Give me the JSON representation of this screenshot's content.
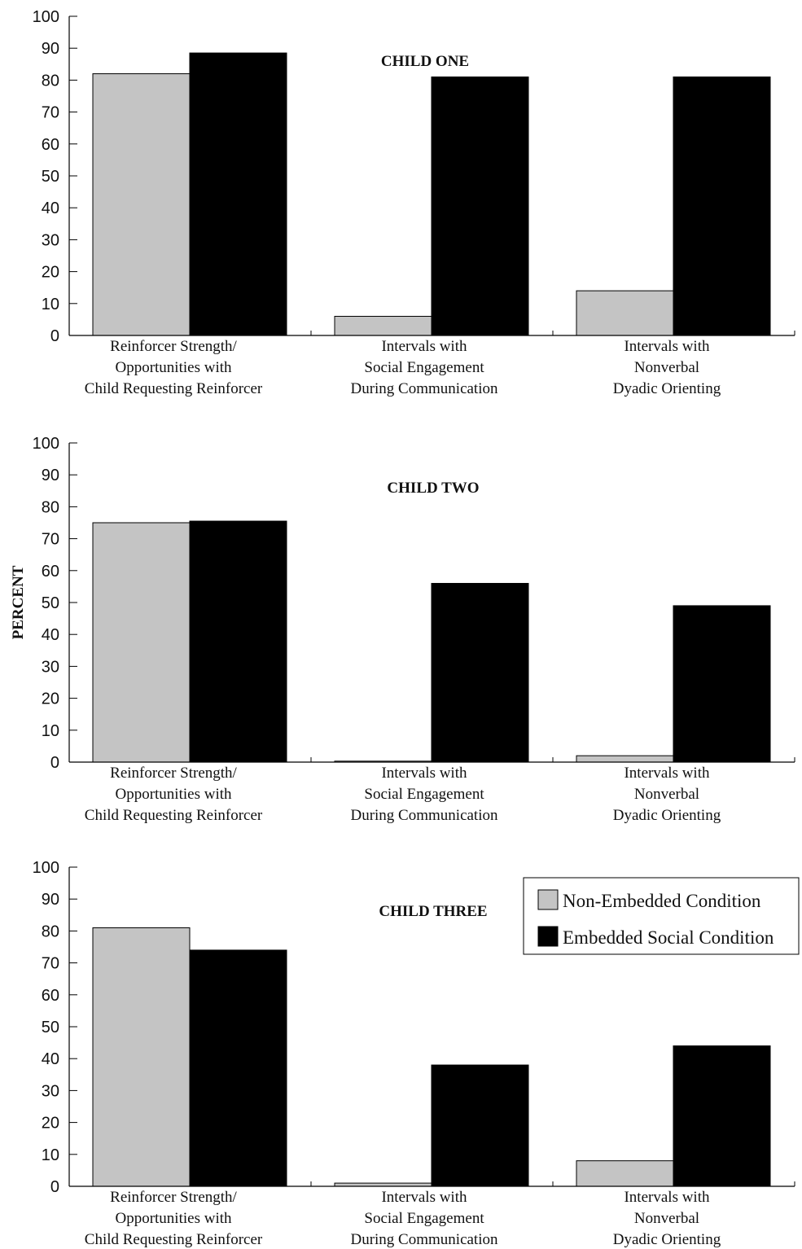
{
  "chart_data": [
    {
      "type": "bar",
      "title": "CHILD ONE",
      "ylabel": "",
      "ylim": [
        0,
        100
      ],
      "yticks": [
        0,
        10,
        20,
        30,
        40,
        50,
        60,
        70,
        80,
        90,
        100
      ],
      "categories": [
        [
          "Reinforcer Strength/",
          "Opportunities with",
          "Child Requesting Reinforcer"
        ],
        [
          "Intervals with",
          "Social Engagement",
          "During Communication"
        ],
        [
          "Intervals with",
          "Nonverbal",
          "Dyadic Orienting"
        ]
      ],
      "series": [
        {
          "name": "Non-Embedded Condition",
          "color": "#c4c4c4",
          "values": [
            82,
            6,
            14
          ]
        },
        {
          "name": "Embedded Social Condition",
          "color": "#000000",
          "values": [
            88.5,
            81,
            81
          ]
        }
      ]
    },
    {
      "type": "bar",
      "title": "CHILD TWO",
      "ylabel": "PERCENT",
      "ylim": [
        0,
        100
      ],
      "yticks": [
        0,
        10,
        20,
        30,
        40,
        50,
        60,
        70,
        80,
        90,
        100
      ],
      "categories": [
        [
          "Reinforcer Strength/",
          "Opportunities with",
          "Child Requesting Reinforcer"
        ],
        [
          "Intervals with",
          "Social Engagement",
          "During Communication"
        ],
        [
          "Intervals with",
          "Nonverbal",
          "Dyadic Orienting"
        ]
      ],
      "series": [
        {
          "name": "Non-Embedded Condition",
          "color": "#c4c4c4",
          "values": [
            75,
            0.3,
            2
          ]
        },
        {
          "name": "Embedded Social Condition",
          "color": "#000000",
          "values": [
            75.5,
            56,
            49
          ]
        }
      ]
    },
    {
      "type": "bar",
      "title": "CHILD THREE",
      "ylabel": "",
      "ylim": [
        0,
        100
      ],
      "yticks": [
        0,
        10,
        20,
        30,
        40,
        50,
        60,
        70,
        80,
        90,
        100
      ],
      "categories": [
        [
          "Reinforcer Strength/",
          "Opportunities with",
          "Child Requesting Reinforcer"
        ],
        [
          "Intervals with",
          "Social Engagement",
          "During Communication"
        ],
        [
          "Intervals with",
          "Nonverbal",
          "Dyadic Orienting"
        ]
      ],
      "series": [
        {
          "name": "Non-Embedded Condition",
          "color": "#c4c4c4",
          "values": [
            81,
            1,
            8
          ]
        },
        {
          "name": "Embedded Social Condition",
          "color": "#000000",
          "values": [
            74,
            38,
            44
          ]
        }
      ],
      "legend": {
        "position": "top-right",
        "entries": [
          "Non-Embedded Condition",
          "Embedded Social Condition"
        ]
      }
    }
  ]
}
